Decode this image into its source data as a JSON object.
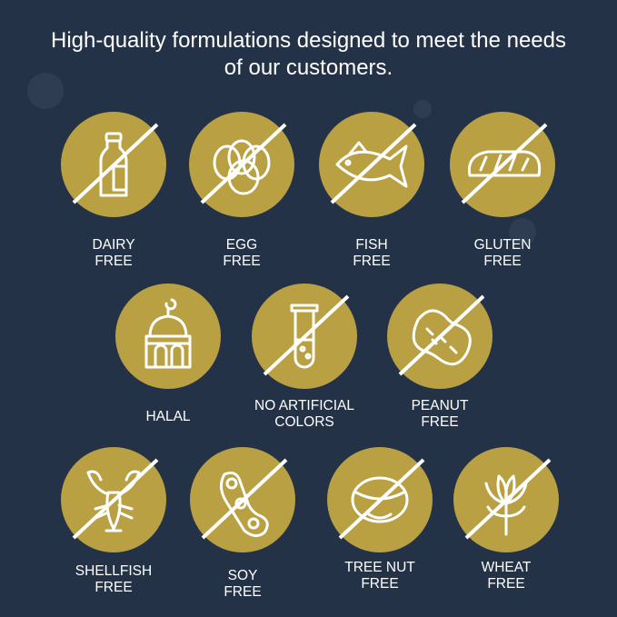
{
  "headline": "High-quality formulations designed to meet the needs of our customers.",
  "colors": {
    "background": "#243248",
    "badge": "#b9a042",
    "line": "#ffffff"
  },
  "badges": [
    {
      "icon": "milk-bottle-icon",
      "label_line1": "DAIRY",
      "label_line2": "FREE",
      "crossed": true
    },
    {
      "icon": "eggs-icon",
      "label_line1": "EGG",
      "label_line2": "FREE",
      "crossed": true
    },
    {
      "icon": "fish-icon",
      "label_line1": "FISH",
      "label_line2": "FREE",
      "crossed": true
    },
    {
      "icon": "bread-icon",
      "label_line1": "GLUTEN",
      "label_line2": "FREE",
      "crossed": true
    },
    {
      "icon": "mosque-icon",
      "label_line1": "HALAL",
      "label_line2": "",
      "crossed": false
    },
    {
      "icon": "test-tube-icon",
      "label_line1": "NO ARTIFICIAL",
      "label_line2": "COLORS",
      "crossed": true
    },
    {
      "icon": "peanut-icon",
      "label_line1": "PEANUT",
      "label_line2": "FREE",
      "crossed": true
    },
    {
      "icon": "lobster-icon",
      "label_line1": "SHELLFISH",
      "label_line2": "FREE",
      "crossed": true
    },
    {
      "icon": "soybean-icon",
      "label_line1": "SOY",
      "label_line2": "FREE",
      "crossed": true
    },
    {
      "icon": "hazelnut-icon",
      "label_line1": "TREE NUT",
      "label_line2": "FREE",
      "crossed": true
    },
    {
      "icon": "wheat-icon",
      "label_line1": "WHEAT",
      "label_line2": "FREE",
      "crossed": true
    }
  ]
}
